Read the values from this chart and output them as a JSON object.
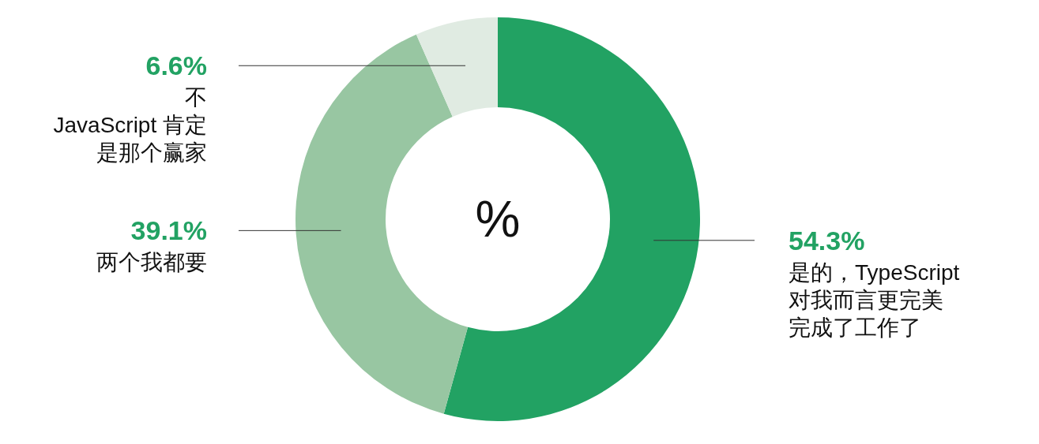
{
  "chart_data": {
    "type": "donut",
    "categories": [
      "是的，TypeScript\n对我而言更完美完成了工作了",
      "两个我都要",
      "不\nJavaScript 肯定是那个赢家"
    ],
    "values": [
      54.3,
      39.1,
      6.6
    ],
    "value_labels": [
      "54.3%",
      "39.1%",
      "6.6%"
    ],
    "colors": [
      "#22a263",
      "#98c6a2",
      "#e0ebe2"
    ],
    "annotations": [
      "%"
    ],
    "legend": false
  }
}
